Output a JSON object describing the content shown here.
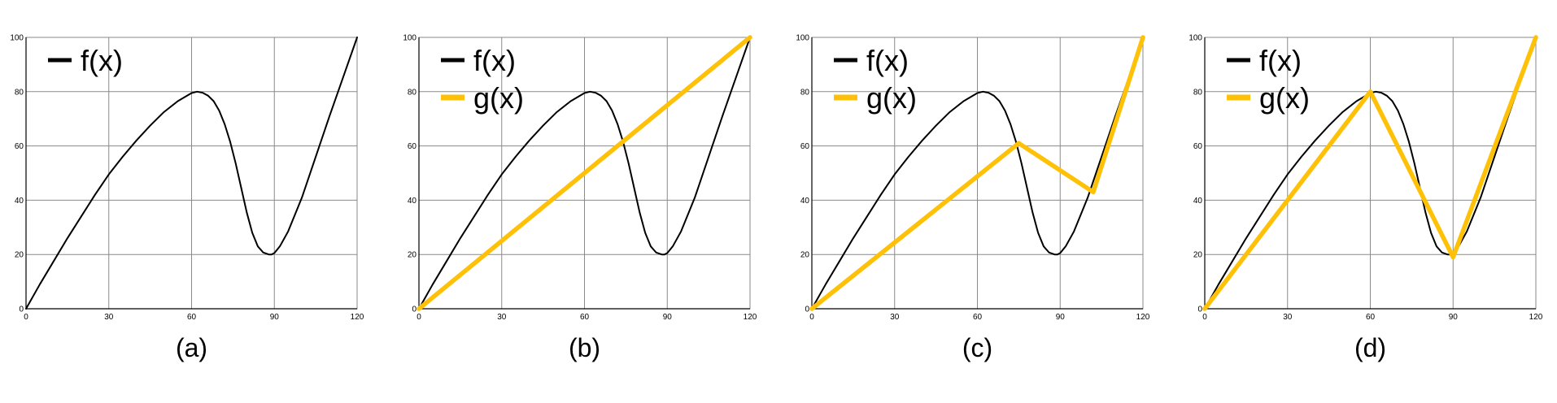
{
  "colors": {
    "f": "#000000",
    "g": "#FFC107",
    "grid": "#8a8a8a"
  },
  "chart_data": [
    {
      "type": "line",
      "caption": "(a)",
      "xlim": [
        0,
        120
      ],
      "ylim": [
        0,
        100
      ],
      "xticks": [
        "0",
        "30",
        "60",
        "90",
        "120"
      ],
      "yticks": [
        "0",
        "20",
        "40",
        "60",
        "80",
        "100"
      ],
      "grid": true,
      "legend_position": "top-left",
      "series": [
        {
          "name": "f(x)",
          "color": "#000000",
          "x": [
            0,
            5,
            10,
            15,
            20,
            25,
            30,
            35,
            40,
            45,
            50,
            55,
            60,
            62,
            64,
            66,
            68,
            70,
            72,
            74,
            76,
            78,
            80,
            82,
            84,
            86,
            88,
            89,
            90,
            92,
            95,
            100,
            105,
            110,
            115,
            120
          ],
          "y": [
            0,
            9,
            17.5,
            26,
            34,
            42,
            49.5,
            56,
            62,
            67.5,
            72.5,
            76.5,
            79.5,
            80,
            79.6,
            78.5,
            76.5,
            73,
            68,
            61.5,
            53.5,
            44.5,
            35.5,
            28,
            23,
            20.7,
            20,
            20,
            20.5,
            23,
            28.5,
            41,
            56,
            71,
            85.5,
            100
          ]
        }
      ]
    },
    {
      "type": "line",
      "caption": "(b)",
      "xlim": [
        0,
        120
      ],
      "ylim": [
        0,
        100
      ],
      "xticks": [
        "0",
        "30",
        "60",
        "90",
        "120"
      ],
      "yticks": [
        "0",
        "20",
        "40",
        "60",
        "80",
        "100"
      ],
      "grid": true,
      "legend_position": "top-left",
      "series": [
        {
          "name": "f(x)",
          "color": "#000000",
          "x": [
            0,
            5,
            10,
            15,
            20,
            25,
            30,
            35,
            40,
            45,
            50,
            55,
            60,
            62,
            64,
            66,
            68,
            70,
            72,
            74,
            76,
            78,
            80,
            82,
            84,
            86,
            88,
            89,
            90,
            92,
            95,
            100,
            105,
            110,
            115,
            120
          ],
          "y": [
            0,
            9,
            17.5,
            26,
            34,
            42,
            49.5,
            56,
            62,
            67.5,
            72.5,
            76.5,
            79.5,
            80,
            79.6,
            78.5,
            76.5,
            73,
            68,
            61.5,
            53.5,
            44.5,
            35.5,
            28,
            23,
            20.7,
            20,
            20,
            20.5,
            23,
            28.5,
            41,
            56,
            71,
            85.5,
            100
          ]
        },
        {
          "name": "g(x)",
          "color": "#FFC107",
          "x": [
            0,
            120
          ],
          "y": [
            0,
            100
          ]
        }
      ]
    },
    {
      "type": "line",
      "caption": "(c)",
      "xlim": [
        0,
        120
      ],
      "ylim": [
        0,
        100
      ],
      "xticks": [
        "0",
        "30",
        "60",
        "90",
        "120"
      ],
      "yticks": [
        "0",
        "20",
        "40",
        "60",
        "80",
        "100"
      ],
      "grid": true,
      "legend_position": "top-left",
      "series": [
        {
          "name": "f(x)",
          "color": "#000000",
          "x": [
            0,
            5,
            10,
            15,
            20,
            25,
            30,
            35,
            40,
            45,
            50,
            55,
            60,
            62,
            64,
            66,
            68,
            70,
            72,
            74,
            76,
            78,
            80,
            82,
            84,
            86,
            88,
            89,
            90,
            92,
            95,
            100,
            105,
            110,
            115,
            120
          ],
          "y": [
            0,
            9,
            17.5,
            26,
            34,
            42,
            49.5,
            56,
            62,
            67.5,
            72.5,
            76.5,
            79.5,
            80,
            79.6,
            78.5,
            76.5,
            73,
            68,
            61.5,
            53.5,
            44.5,
            35.5,
            28,
            23,
            20.7,
            20,
            20,
            20.5,
            23,
            28.5,
            41,
            56,
            71,
            85.5,
            100
          ]
        },
        {
          "name": "g(x)",
          "color": "#FFC107",
          "x": [
            0,
            75,
            102,
            120
          ],
          "y": [
            0,
            61,
            43,
            100
          ]
        }
      ]
    },
    {
      "type": "line",
      "caption": "(d)",
      "xlim": [
        0,
        120
      ],
      "ylim": [
        0,
        100
      ],
      "xticks": [
        "0",
        "30",
        "60",
        "90",
        "120"
      ],
      "yticks": [
        "0",
        "20",
        "40",
        "60",
        "80",
        "100"
      ],
      "grid": true,
      "legend_position": "top-left",
      "series": [
        {
          "name": "f(x)",
          "color": "#000000",
          "x": [
            0,
            5,
            10,
            15,
            20,
            25,
            30,
            35,
            40,
            45,
            50,
            55,
            60,
            62,
            64,
            66,
            68,
            70,
            72,
            74,
            76,
            78,
            80,
            82,
            84,
            86,
            88,
            89,
            90,
            92,
            95,
            100,
            105,
            110,
            115,
            120
          ],
          "y": [
            0,
            9,
            17.5,
            26,
            34,
            42,
            49.5,
            56,
            62,
            67.5,
            72.5,
            76.5,
            79.5,
            80,
            79.6,
            78.5,
            76.5,
            73,
            68,
            61.5,
            53.5,
            44.5,
            35.5,
            28,
            23,
            20.7,
            20,
            20,
            20.5,
            23,
            28.5,
            41,
            56,
            71,
            85.5,
            100
          ]
        },
        {
          "name": "g(x)",
          "color": "#FFC107",
          "x": [
            0,
            60,
            90,
            120
          ],
          "y": [
            0,
            80,
            19,
            100
          ]
        }
      ]
    }
  ]
}
